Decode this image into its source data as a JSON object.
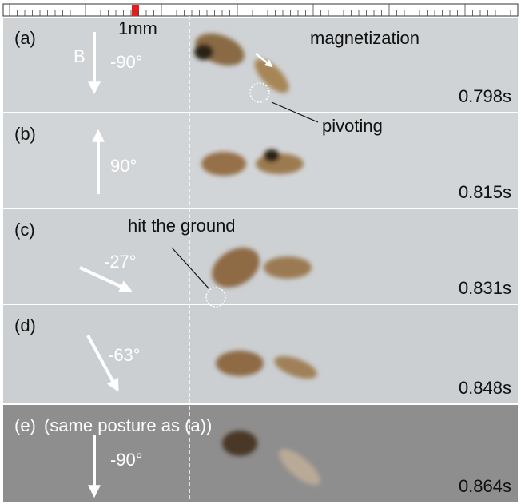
{
  "scale_bar": {
    "label": "1mm"
  },
  "field_label": "B",
  "frames": [
    {
      "label": "(a)",
      "angle": "-90°",
      "time": "0.798s"
    },
    {
      "label": "(b)",
      "angle": "90°",
      "time": "0.815s"
    },
    {
      "label": "(c)",
      "angle": "-27°",
      "time": "0.831s"
    },
    {
      "label": "(d)",
      "angle": "-63°",
      "time": "0.848s"
    },
    {
      "label": "(e)",
      "note": "(same posture as (a))",
      "angle": "-90°",
      "time": "0.864s"
    }
  ],
  "annotations": {
    "magnetization": "magnetization",
    "pivoting": "pivoting",
    "hit_ground": "hit the ground"
  }
}
